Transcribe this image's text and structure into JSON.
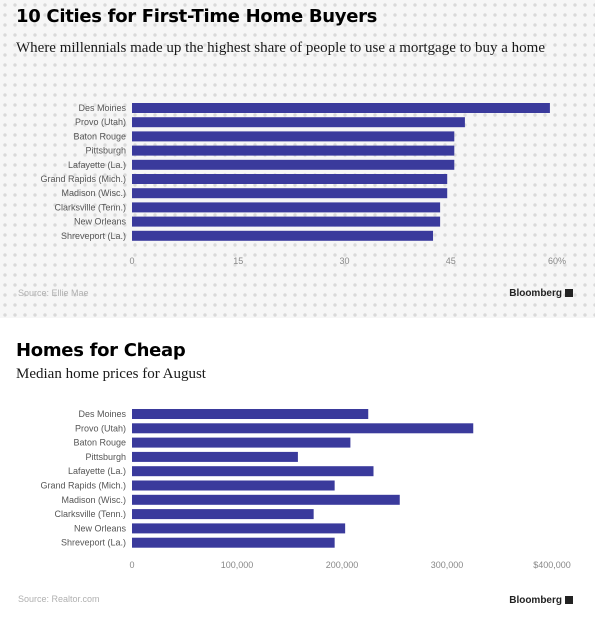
{
  "colors": {
    "bar": "#3a3a9c",
    "axis_text": "#888888",
    "label_text": "#555555",
    "source_text": "#b0b0b0"
  },
  "chart_data": [
    {
      "type": "bar",
      "orientation": "horizontal",
      "title": "10 Cities for First-Time Home Buyers",
      "subtitle": "Where millennials made up the highest share of people to use a mortgage to buy a home",
      "categories": [
        "Des Moines",
        "Provo (Utah)",
        "Baton Rouge",
        "Pittsburgh",
        "Lafayette (La.)",
        "Grand Rapids (Mich.)",
        "Madison (Wisc.)",
        "Clarksville (Tenn.)",
        "New Orleans",
        "Shreveport (La.)"
      ],
      "values": [
        59,
        47,
        45.5,
        45.5,
        45.5,
        44.5,
        44.5,
        43.5,
        43.5,
        42.5
      ],
      "xlim": [
        0,
        60
      ],
      "ticks": [
        0,
        15,
        30,
        45,
        60
      ],
      "tick_labels": [
        "0",
        "15",
        "30",
        "45",
        "60%"
      ],
      "grid": false,
      "source": "Source: Ellie Mae",
      "brand": "Bloomberg"
    },
    {
      "type": "bar",
      "orientation": "horizontal",
      "title": "Homes for Cheap",
      "subtitle": "Median home prices for August",
      "categories": [
        "Des Moines",
        "Provo (Utah)",
        "Baton Rouge",
        "Pittsburgh",
        "Lafayette (La.)",
        "Grand Rapids (Mich.)",
        "Madison (Wisc.)",
        "Clarksville (Tenn.)",
        "New Orleans",
        "Shreveport (La.)"
      ],
      "values": [
        225000,
        325000,
        208000,
        158000,
        230000,
        193000,
        255000,
        173000,
        203000,
        193000
      ],
      "xlim": [
        0,
        440000
      ],
      "ticks": [
        0,
        100000,
        200000,
        300000,
        400000
      ],
      "tick_labels": [
        "0",
        "100,000",
        "200,000",
        "300,000",
        "$400,000"
      ],
      "grid": false,
      "source": "Source: Realtor.com",
      "brand": "Bloomberg"
    }
  ]
}
